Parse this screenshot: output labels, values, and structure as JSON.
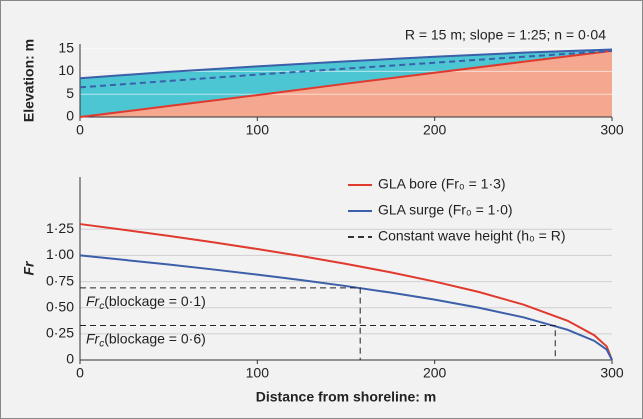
{
  "chart_data": [
    {
      "type": "area-profile",
      "ylabel": "Elevation: m",
      "annotation": "R = 15 m; slope = 1:25; n = 0·04",
      "x": [
        0,
        50,
        100,
        150,
        200,
        250,
        300
      ],
      "series": [
        {
          "color": "#e03a2f",
          "fill": "#f4a88f",
          "values": [
            0,
            2.4,
            4.8,
            7.3,
            9.7,
            12.1,
            14.5
          ]
        },
        {
          "color": "#3b5fa8",
          "fill": "#4cc6d3",
          "values": [
            8.5,
            9.9,
            11.1,
            12.2,
            13.2,
            14.1,
            14.8
          ]
        },
        {
          "color": "#3b5fa8",
          "dash": true,
          "values": [
            6.5,
            7.9,
            9.3,
            10.6,
            11.9,
            13.2,
            14.5
          ]
        }
      ],
      "xlim": [
        0,
        300
      ],
      "xticks": [
        0,
        100,
        200,
        300
      ],
      "ylim": [
        0,
        16
      ],
      "yticks": [
        0,
        5,
        10,
        15
      ],
      "grid": true
    },
    {
      "type": "line",
      "xlabel": "Distance from shoreline: m",
      "ylabel": "Fr",
      "x": [
        0,
        25,
        50,
        75,
        100,
        125,
        150,
        175,
        200,
        225,
        250,
        275,
        290,
        297,
        300
      ],
      "series": [
        {
          "name": "GLA bore (Fr₀ = 1·3)",
          "color": "#e03a2f",
          "values": [
            1.3,
            1.244,
            1.187,
            1.126,
            1.061,
            0.993,
            0.919,
            0.839,
            0.75,
            0.65,
            0.53,
            0.375,
            0.237,
            0.13,
            0
          ]
        },
        {
          "name": "GLA surge (Fr₀ = 1·0)",
          "color": "#3b5fa8",
          "values": [
            1.0,
            0.957,
            0.913,
            0.866,
            0.816,
            0.764,
            0.707,
            0.645,
            0.577,
            0.5,
            0.408,
            0.289,
            0.183,
            0.1,
            0
          ]
        }
      ],
      "legend_extra": {
        "name": "Constant wave height (h₀ = R)",
        "color": "#333333",
        "dash": true
      },
      "thresholds": [
        {
          "value": 0.69,
          "x": 158,
          "label": [
            "Fr",
            "c",
            "(blockage = 0·1)"
          ]
        },
        {
          "value": 0.33,
          "x": 268,
          "label": [
            "Fr",
            "c",
            "(blockage = 0·6)"
          ]
        }
      ],
      "xlim": [
        0,
        300
      ],
      "xticks": [
        0,
        100,
        200,
        300
      ],
      "ylim": [
        0,
        1.75
      ],
      "yticks": [
        0,
        {
          "value": 0.25,
          "label": "0·25"
        },
        {
          "value": 0.5,
          "label": "0·50"
        },
        {
          "value": 0.75,
          "label": "0·75"
        },
        {
          "value": 1.0,
          "label": "1·00"
        },
        {
          "value": 1.25,
          "label": "1·25"
        }
      ],
      "grid": true,
      "legend": "top-right"
    }
  ]
}
